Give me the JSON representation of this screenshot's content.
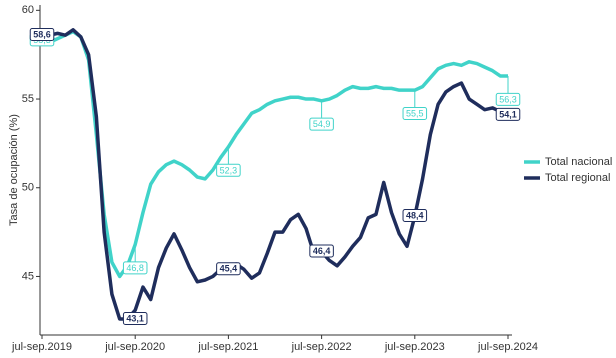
{
  "chart_data": {
    "type": "line",
    "y_label": "Tasa de ocupación (%)",
    "categories": [
      "jul-sep.2019",
      null,
      null,
      null,
      null,
      null,
      null,
      null,
      null,
      null,
      null,
      null,
      "jul-sep.2020",
      null,
      null,
      null,
      null,
      null,
      null,
      null,
      null,
      null,
      null,
      null,
      "jul-sep.2021",
      null,
      null,
      null,
      null,
      null,
      null,
      null,
      null,
      null,
      null,
      null,
      "jul-sep.2022",
      null,
      null,
      null,
      null,
      null,
      null,
      null,
      null,
      null,
      null,
      null,
      "jul-sep.2023",
      null,
      null,
      null,
      null,
      null,
      null,
      null,
      null,
      null,
      null,
      null,
      "jul-sep.2024"
    ],
    "ylim": [
      41.7,
      60.3
    ],
    "yticks": [
      45,
      50,
      55,
      60
    ],
    "legend": "right",
    "series": [
      {
        "name": "Total nacional",
        "color": "#40d3c9",
        "values": [
          58.3,
          58.2,
          58.4,
          58.6,
          58.8,
          58.5,
          57.2,
          53.0,
          48.5,
          45.8,
          45.0,
          45.6,
          46.8,
          48.6,
          50.2,
          50.9,
          51.3,
          51.5,
          51.3,
          51.0,
          50.6,
          50.5,
          51.0,
          51.7,
          52.3,
          53.0,
          53.6,
          54.2,
          54.4,
          54.7,
          54.9,
          55.0,
          55.1,
          55.1,
          55.0,
          55.0,
          54.9,
          55.0,
          55.2,
          55.5,
          55.7,
          55.6,
          55.6,
          55.7,
          55.6,
          55.6,
          55.5,
          55.5,
          55.5,
          55.7,
          56.2,
          56.7,
          56.9,
          57.0,
          56.9,
          57.1,
          57.0,
          56.8,
          56.6,
          56.3,
          56.3
        ],
        "value_labels": [
          "58,3",
          null,
          null,
          null,
          null,
          null,
          null,
          null,
          null,
          null,
          null,
          null,
          "46,8",
          null,
          null,
          null,
          null,
          null,
          null,
          null,
          null,
          null,
          null,
          null,
          "52,3",
          null,
          null,
          null,
          null,
          null,
          null,
          null,
          null,
          null,
          null,
          null,
          "54,9",
          null,
          null,
          null,
          null,
          null,
          null,
          null,
          null,
          null,
          null,
          null,
          "55,5",
          null,
          null,
          null,
          null,
          null,
          null,
          null,
          null,
          null,
          null,
          null,
          "56,3"
        ]
      },
      {
        "name": "Total regional",
        "color": "#1f2d5c",
        "values": [
          58.6,
          58.6,
          58.7,
          58.6,
          58.9,
          58.5,
          57.5,
          54.0,
          47.5,
          44.0,
          42.6,
          42.6,
          43.1,
          44.4,
          43.7,
          45.5,
          46.6,
          47.4,
          46.5,
          45.5,
          44.7,
          44.8,
          45.0,
          45.4,
          45.4,
          45.7,
          45.4,
          44.9,
          45.2,
          46.3,
          47.5,
          47.5,
          48.2,
          48.5,
          47.7,
          46.3,
          46.4,
          45.9,
          45.6,
          46.1,
          46.7,
          47.2,
          48.3,
          48.5,
          50.3,
          48.6,
          47.4,
          46.7,
          48.4,
          50.5,
          53.0,
          54.7,
          55.4,
          55.7,
          55.9,
          55.0,
          54.7,
          54.4,
          54.5,
          54.3,
          54.1
        ],
        "value_labels": [
          "58,6",
          null,
          null,
          null,
          null,
          null,
          null,
          null,
          null,
          null,
          null,
          null,
          "43,1",
          null,
          null,
          null,
          null,
          null,
          null,
          null,
          null,
          null,
          null,
          null,
          "45,4",
          null,
          null,
          null,
          null,
          null,
          null,
          null,
          null,
          null,
          null,
          null,
          "46,4",
          null,
          null,
          null,
          null,
          null,
          null,
          null,
          null,
          null,
          null,
          null,
          "48,4",
          null,
          null,
          null,
          null,
          null,
          null,
          null,
          null,
          null,
          null,
          null,
          "54,1"
        ]
      }
    ]
  }
}
